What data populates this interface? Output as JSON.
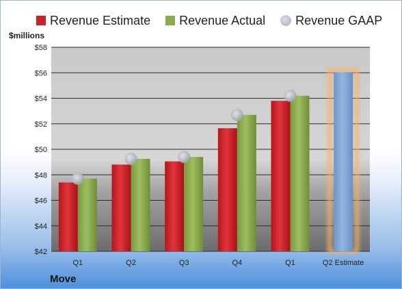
{
  "company": "Move",
  "chart_data": {
    "type": "bar",
    "ylabel": "$millions",
    "ylim": [
      42,
      58
    ],
    "yticks": [
      "$42",
      "$44",
      "$46",
      "$48",
      "$50",
      "$52",
      "$54",
      "$56",
      "$58"
    ],
    "categories": [
      "Q1",
      "Q2",
      "Q3",
      "Q4",
      "Q1",
      "Q2 Estimate"
    ],
    "series": [
      {
        "name": "Revenue Estimate",
        "type": "bar",
        "color": "#cc2229",
        "values": [
          47.4,
          48.8,
          49.05,
          51.65,
          53.8,
          null
        ]
      },
      {
        "name": "Revenue Actual",
        "type": "bar",
        "color": "#8aab4e",
        "values": [
          47.7,
          49.25,
          49.4,
          52.7,
          54.2,
          null
        ]
      },
      {
        "name": "Revenue GAAP",
        "type": "scatter",
        "color": "#b8bcc6",
        "values": [
          47.7,
          49.25,
          49.4,
          52.7,
          54.2,
          null
        ]
      },
      {
        "name": "Q2 Estimate",
        "type": "bar",
        "color": "#7ea4d4",
        "highlight": "#f6b26b",
        "values": [
          null,
          null,
          null,
          null,
          null,
          56.05
        ]
      }
    ],
    "legend": [
      "Revenue Estimate",
      "Revenue Actual",
      "Revenue GAAP"
    ],
    "legend_position": "top",
    "grid": true
  }
}
